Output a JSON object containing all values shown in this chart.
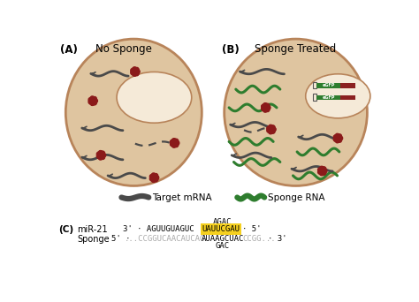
{
  "bg_color": "#ffffff",
  "cell_color": "#dfc5a0",
  "nucleus_color": "#f5ead8",
  "cell_outline": "#b8845a",
  "title_A": "No Sponge",
  "title_B": "Sponge Treated",
  "label_A": "(A)",
  "label_B": "(B)",
  "label_C": "(C)",
  "legend_mrna": "Target mRNA",
  "legend_sponge": "Sponge RNA",
  "mrna_color": "#4a4a4a",
  "sponge_color": "#2e7d2e",
  "mirna_color": "#8b1a1a",
  "dashed_color": "#4a4a4a",
  "yellow_bg": "#f5d020",
  "seq_top": "AGAC",
  "seq_bottom": "GAC",
  "mir21_label": "miR-21",
  "sponge_label": "Sponge",
  "egfp_color": "#2e7d2e",
  "red_dots_color": "#8b2020",
  "gray_text": "#aaaaaa"
}
